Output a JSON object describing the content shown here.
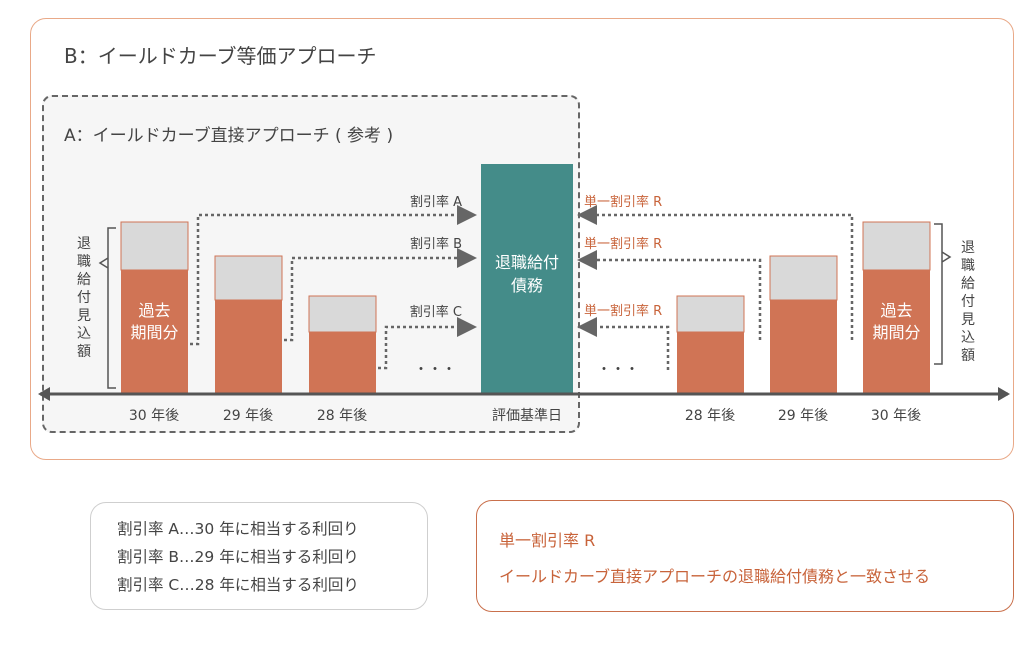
{
  "titles": {
    "b": "B：イールドカーブ等価アプローチ",
    "a": "A：イールドカーブ直接アプローチ ( 参考 )"
  },
  "left_bars": {
    "past_label_line1": "過去",
    "past_label_line2": "期間分",
    "brace_label": [
      "退",
      "職",
      "給",
      "付",
      "見",
      "込",
      "額"
    ]
  },
  "center": {
    "label_line1": "退職給付",
    "label_line2": "債務",
    "axis_label": "評価基準日"
  },
  "left_arrows": [
    "割引率 A",
    "割引率 B",
    "割引率 C"
  ],
  "right_arrows": [
    "単一割引率 R",
    "単一割引率 R",
    "単一割引率 R"
  ],
  "axis_left": [
    "30 年後",
    "29 年後",
    "28 年後"
  ],
  "axis_right": [
    "28 年後",
    "29 年後",
    "30 年後"
  ],
  "right_bars": {
    "past_label_line1": "過去",
    "past_label_line2": "期間分",
    "brace_label": [
      "退",
      "職",
      "給",
      "付",
      "見",
      "込",
      "額"
    ]
  },
  "ellipsis": "・・・",
  "note_left": [
    "割引率 A…30 年に相当する利回り",
    "割引率 B…29 年に相当する利回り",
    "割引率 C…28 年に相当する利回り"
  ],
  "note_right": {
    "line1": "単一割引率 R",
    "line2": "イールドカーブ直接アプローチの退職給付債務と一致させる"
  },
  "colors": {
    "bar_past": "#d07455",
    "bar_top": "#d9d9d9",
    "center": "#448c89",
    "accent": "#c8633a"
  }
}
